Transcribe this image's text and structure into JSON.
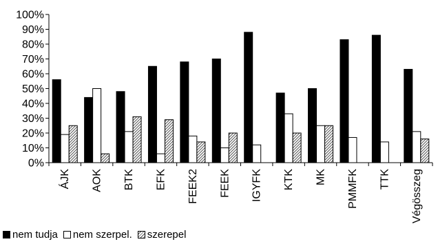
{
  "chart_data": {
    "type": "bar",
    "title": "",
    "xlabel": "",
    "ylabel": "",
    "ylim": [
      0,
      100
    ],
    "y_ticks": [
      "0%",
      "10%",
      "20%",
      "30%",
      "40%",
      "50%",
      "60%",
      "70%",
      "80%",
      "90%",
      "100%"
    ],
    "grid": false,
    "legend_position": "bottom-left",
    "categories": [
      "ÁJK",
      "AOK",
      "BTK",
      "EFK",
      "FEEK2",
      "FEEK",
      "IGYFK",
      "KTK",
      "MK",
      "PMMFK",
      "TTK",
      "Végösszeg"
    ],
    "series": [
      {
        "name": "nem tudja",
        "fill": "solid",
        "color": "#000000",
        "values": [
          56,
          44,
          48,
          65,
          68,
          70,
          88,
          47,
          50,
          83,
          86,
          63
        ]
      },
      {
        "name": "nem szerpel.",
        "fill": "empty",
        "color": "#ffffff",
        "values": [
          19,
          50,
          21,
          6,
          18,
          10,
          12,
          33,
          25,
          17,
          14,
          21
        ]
      },
      {
        "name": "szerepel",
        "fill": "hatched",
        "color": "#999999",
        "values": [
          25,
          6,
          31,
          29,
          14,
          20,
          0,
          20,
          25,
          0,
          0,
          16
        ]
      }
    ]
  }
}
